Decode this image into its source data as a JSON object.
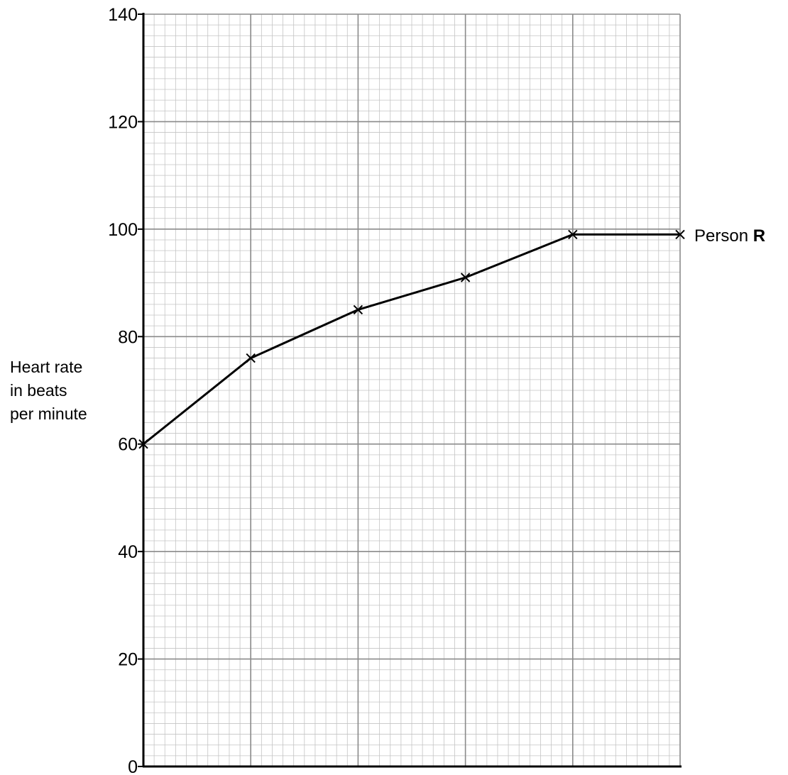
{
  "chart_data": {
    "type": "line",
    "title": "",
    "xlabel": "",
    "ylabel": [
      "Heart rate",
      "in beats",
      "per minute"
    ],
    "ylim": [
      0,
      140
    ],
    "y_ticks": [
      0,
      20,
      40,
      60,
      80,
      100,
      120,
      140
    ],
    "x_tick_labels": [],
    "grid": true,
    "series": [
      {
        "name": "Person R",
        "name_parts": [
          "Person ",
          "R"
        ],
        "x": [
          0,
          1,
          2,
          3,
          4,
          5
        ],
        "y": [
          60,
          76,
          85,
          91,
          99,
          99
        ],
        "marker": "x",
        "color": "#000000"
      }
    ]
  }
}
